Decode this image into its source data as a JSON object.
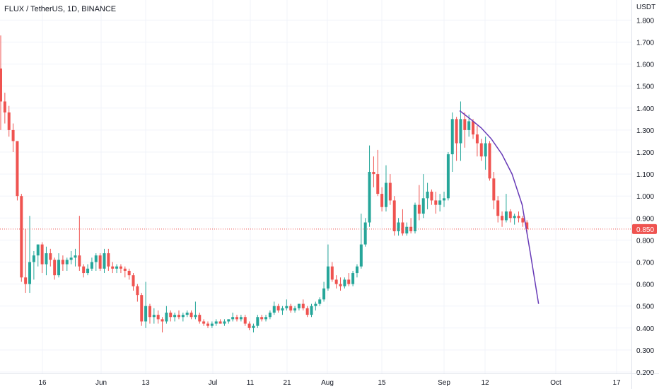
{
  "title": "FLUX / TetherUS, 1D, BINANCE",
  "currency": "USDT",
  "current_price_label": "0.850",
  "colors": {
    "up": "#26a69a",
    "down": "#ef5350",
    "trendline": "#673ab7",
    "price_line": "#ef5350",
    "grid": "#f0f3fa",
    "text": "#131722"
  },
  "chart_data": {
    "type": "candlestick",
    "symbol": "FLUX / TetherUS",
    "interval": "1D",
    "exchange": "BINANCE",
    "ylim": [
      0.2,
      1.8
    ],
    "y_ticks": [
      "0.200",
      "0.300",
      "0.400",
      "0.500",
      "0.600",
      "0.700",
      "0.800",
      "0.900",
      "1.000",
      "1.100",
      "1.200",
      "1.300",
      "1.400",
      "1.500",
      "1.600",
      "1.700",
      "1.800"
    ],
    "x_ticks": [
      "16",
      "Jun",
      "13",
      "Jul",
      "11",
      "21",
      "Aug",
      "15",
      "Sep",
      "12",
      "Oct",
      "17"
    ],
    "current_price": 0.85,
    "candles": [
      [
        1.58,
        1.73,
        1.3,
        1.43
      ],
      [
        1.43,
        1.47,
        1.33,
        1.38
      ],
      [
        1.38,
        1.41,
        1.27,
        1.3
      ],
      [
        1.3,
        1.33,
        1.2,
        1.25
      ],
      [
        1.25,
        1.25,
        0.98,
        1.0
      ],
      [
        1.0,
        1.01,
        0.61,
        0.63
      ],
      [
        0.63,
        0.85,
        0.56,
        0.6
      ],
      [
        0.6,
        0.91,
        0.56,
        0.7
      ],
      [
        0.7,
        0.75,
        0.62,
        0.73
      ],
      [
        0.73,
        0.78,
        0.68,
        0.78
      ],
      [
        0.78,
        0.79,
        0.65,
        0.69
      ],
      [
        0.69,
        0.77,
        0.64,
        0.74
      ],
      [
        0.74,
        0.76,
        0.68,
        0.71
      ],
      [
        0.71,
        0.72,
        0.62,
        0.64
      ],
      [
        0.64,
        0.74,
        0.63,
        0.71
      ],
      [
        0.71,
        0.73,
        0.66,
        0.69
      ],
      [
        0.69,
        0.72,
        0.66,
        0.71
      ],
      [
        0.71,
        0.75,
        0.69,
        0.72
      ],
      [
        0.72,
        0.76,
        0.68,
        0.73
      ],
      [
        0.73,
        0.91,
        0.66,
        0.68
      ],
      [
        0.68,
        0.69,
        0.63,
        0.65
      ],
      [
        0.65,
        0.69,
        0.64,
        0.67
      ],
      [
        0.67,
        0.72,
        0.66,
        0.7
      ],
      [
        0.7,
        0.74,
        0.66,
        0.73
      ],
      [
        0.73,
        0.74,
        0.66,
        0.67
      ],
      [
        0.67,
        0.76,
        0.65,
        0.74
      ],
      [
        0.74,
        0.76,
        0.66,
        0.68
      ],
      [
        0.68,
        0.7,
        0.65,
        0.67
      ],
      [
        0.67,
        0.69,
        0.65,
        0.68
      ],
      [
        0.68,
        0.69,
        0.65,
        0.67
      ],
      [
        0.67,
        0.68,
        0.63,
        0.66
      ],
      [
        0.66,
        0.67,
        0.62,
        0.64
      ],
      [
        0.64,
        0.65,
        0.57,
        0.59
      ],
      [
        0.59,
        0.6,
        0.52,
        0.55
      ],
      [
        0.55,
        0.56,
        0.41,
        0.43
      ],
      [
        0.43,
        0.61,
        0.4,
        0.5
      ],
      [
        0.5,
        0.51,
        0.42,
        0.45
      ],
      [
        0.45,
        0.49,
        0.42,
        0.46
      ],
      [
        0.46,
        0.48,
        0.42,
        0.44
      ],
      [
        0.44,
        0.45,
        0.38,
        0.43
      ],
      [
        0.43,
        0.5,
        0.42,
        0.47
      ],
      [
        0.47,
        0.48,
        0.43,
        0.45
      ],
      [
        0.45,
        0.47,
        0.43,
        0.46
      ],
      [
        0.46,
        0.48,
        0.44,
        0.45
      ],
      [
        0.45,
        0.47,
        0.43,
        0.46
      ],
      [
        0.46,
        0.48,
        0.45,
        0.47
      ],
      [
        0.47,
        0.48,
        0.44,
        0.45
      ],
      [
        0.45,
        0.52,
        0.44,
        0.46
      ],
      [
        0.46,
        0.47,
        0.42,
        0.43
      ],
      [
        0.43,
        0.44,
        0.41,
        0.42
      ],
      [
        0.42,
        0.43,
        0.4,
        0.41
      ],
      [
        0.41,
        0.43,
        0.4,
        0.42
      ],
      [
        0.42,
        0.44,
        0.41,
        0.43
      ],
      [
        0.43,
        0.44,
        0.42,
        0.42
      ],
      [
        0.42,
        0.44,
        0.41,
        0.43
      ],
      [
        0.43,
        0.44,
        0.42,
        0.44
      ],
      [
        0.44,
        0.47,
        0.43,
        0.45
      ],
      [
        0.45,
        0.46,
        0.43,
        0.44
      ],
      [
        0.44,
        0.46,
        0.43,
        0.45
      ],
      [
        0.45,
        0.46,
        0.41,
        0.42
      ],
      [
        0.42,
        0.43,
        0.39,
        0.4
      ],
      [
        0.4,
        0.42,
        0.38,
        0.41
      ],
      [
        0.41,
        0.46,
        0.4,
        0.45
      ],
      [
        0.45,
        0.46,
        0.43,
        0.44
      ],
      [
        0.44,
        0.46,
        0.43,
        0.45
      ],
      [
        0.45,
        0.48,
        0.44,
        0.47
      ],
      [
        0.47,
        0.52,
        0.46,
        0.5
      ],
      [
        0.5,
        0.51,
        0.47,
        0.48
      ],
      [
        0.48,
        0.5,
        0.46,
        0.49
      ],
      [
        0.49,
        0.53,
        0.48,
        0.5
      ],
      [
        0.5,
        0.51,
        0.47,
        0.48
      ],
      [
        0.48,
        0.5,
        0.47,
        0.49
      ],
      [
        0.49,
        0.51,
        0.48,
        0.51
      ],
      [
        0.51,
        0.53,
        0.48,
        0.49
      ],
      [
        0.49,
        0.5,
        0.45,
        0.46
      ],
      [
        0.46,
        0.51,
        0.45,
        0.5
      ],
      [
        0.5,
        0.52,
        0.48,
        0.51
      ],
      [
        0.51,
        0.54,
        0.5,
        0.53
      ],
      [
        0.53,
        0.61,
        0.52,
        0.58
      ],
      [
        0.58,
        0.78,
        0.57,
        0.68
      ],
      [
        0.68,
        0.7,
        0.61,
        0.62
      ],
      [
        0.62,
        0.64,
        0.58,
        0.6
      ],
      [
        0.6,
        0.63,
        0.57,
        0.59
      ],
      [
        0.59,
        0.63,
        0.58,
        0.62
      ],
      [
        0.62,
        0.65,
        0.59,
        0.6
      ],
      [
        0.6,
        0.66,
        0.59,
        0.65
      ],
      [
        0.65,
        0.69,
        0.63,
        0.68
      ],
      [
        0.68,
        0.92,
        0.67,
        0.78
      ],
      [
        0.78,
        0.9,
        0.77,
        0.88
      ],
      [
        0.88,
        1.23,
        0.86,
        1.11
      ],
      [
        1.11,
        1.18,
        1.04,
        1.1
      ],
      [
        1.1,
        1.21,
        1.0,
        1.01
      ],
      [
        1.01,
        1.04,
        0.93,
        0.95
      ],
      [
        0.95,
        1.14,
        0.93,
        1.06
      ],
      [
        1.06,
        1.1,
        0.96,
        0.98
      ],
      [
        0.98,
        1.0,
        0.82,
        0.84
      ],
      [
        0.84,
        0.9,
        0.82,
        0.88
      ],
      [
        0.88,
        0.94,
        0.82,
        0.83
      ],
      [
        0.83,
        0.88,
        0.82,
        0.86
      ],
      [
        0.86,
        0.9,
        0.83,
        0.84
      ],
      [
        0.84,
        0.97,
        0.83,
        0.96
      ],
      [
        0.96,
        1.05,
        0.89,
        0.92
      ],
      [
        0.92,
        1.1,
        0.9,
        0.99
      ],
      [
        0.99,
        1.06,
        0.94,
        1.02
      ],
      [
        1.02,
        1.03,
        0.96,
        0.98
      ],
      [
        0.98,
        1.02,
        0.92,
        0.96
      ],
      [
        0.96,
        1.01,
        0.93,
        0.98
      ],
      [
        0.98,
        1.02,
        0.95,
        0.99
      ],
      [
        0.99,
        1.2,
        0.98,
        1.19
      ],
      [
        1.19,
        1.38,
        1.11,
        1.35
      ],
      [
        1.35,
        1.36,
        1.16,
        1.24
      ],
      [
        1.24,
        1.43,
        1.16,
        1.35
      ],
      [
        1.35,
        1.38,
        1.22,
        1.3
      ],
      [
        1.3,
        1.37,
        1.27,
        1.34
      ],
      [
        1.34,
        1.35,
        1.26,
        1.28
      ],
      [
        1.28,
        1.32,
        1.18,
        1.24
      ],
      [
        1.24,
        1.26,
        1.16,
        1.18
      ],
      [
        1.18,
        1.27,
        1.12,
        1.24
      ],
      [
        1.24,
        1.25,
        1.07,
        1.08
      ],
      [
        1.08,
        1.11,
        0.94,
        0.98
      ],
      [
        0.98,
        1.0,
        0.88,
        0.91
      ],
      [
        0.91,
        0.93,
        0.86,
        0.89
      ],
      [
        0.89,
        1.01,
        0.88,
        0.93
      ],
      [
        0.93,
        0.94,
        0.88,
        0.9
      ],
      [
        0.9,
        0.92,
        0.87,
        0.91
      ],
      [
        0.91,
        0.93,
        0.88,
        0.9
      ],
      [
        0.9,
        0.91,
        0.86,
        0.88
      ],
      [
        0.88,
        0.89,
        0.83,
        0.85
      ]
    ],
    "trendline": [
      [
        0.728,
        1.388
      ],
      [
        0.745,
        1.35
      ],
      [
        0.762,
        1.31
      ],
      [
        0.778,
        1.26
      ],
      [
        0.795,
        1.19
      ],
      [
        0.811,
        1.1
      ],
      [
        0.827,
        0.96
      ],
      [
        0.84,
        0.74
      ],
      [
        0.853,
        0.51
      ]
    ]
  }
}
